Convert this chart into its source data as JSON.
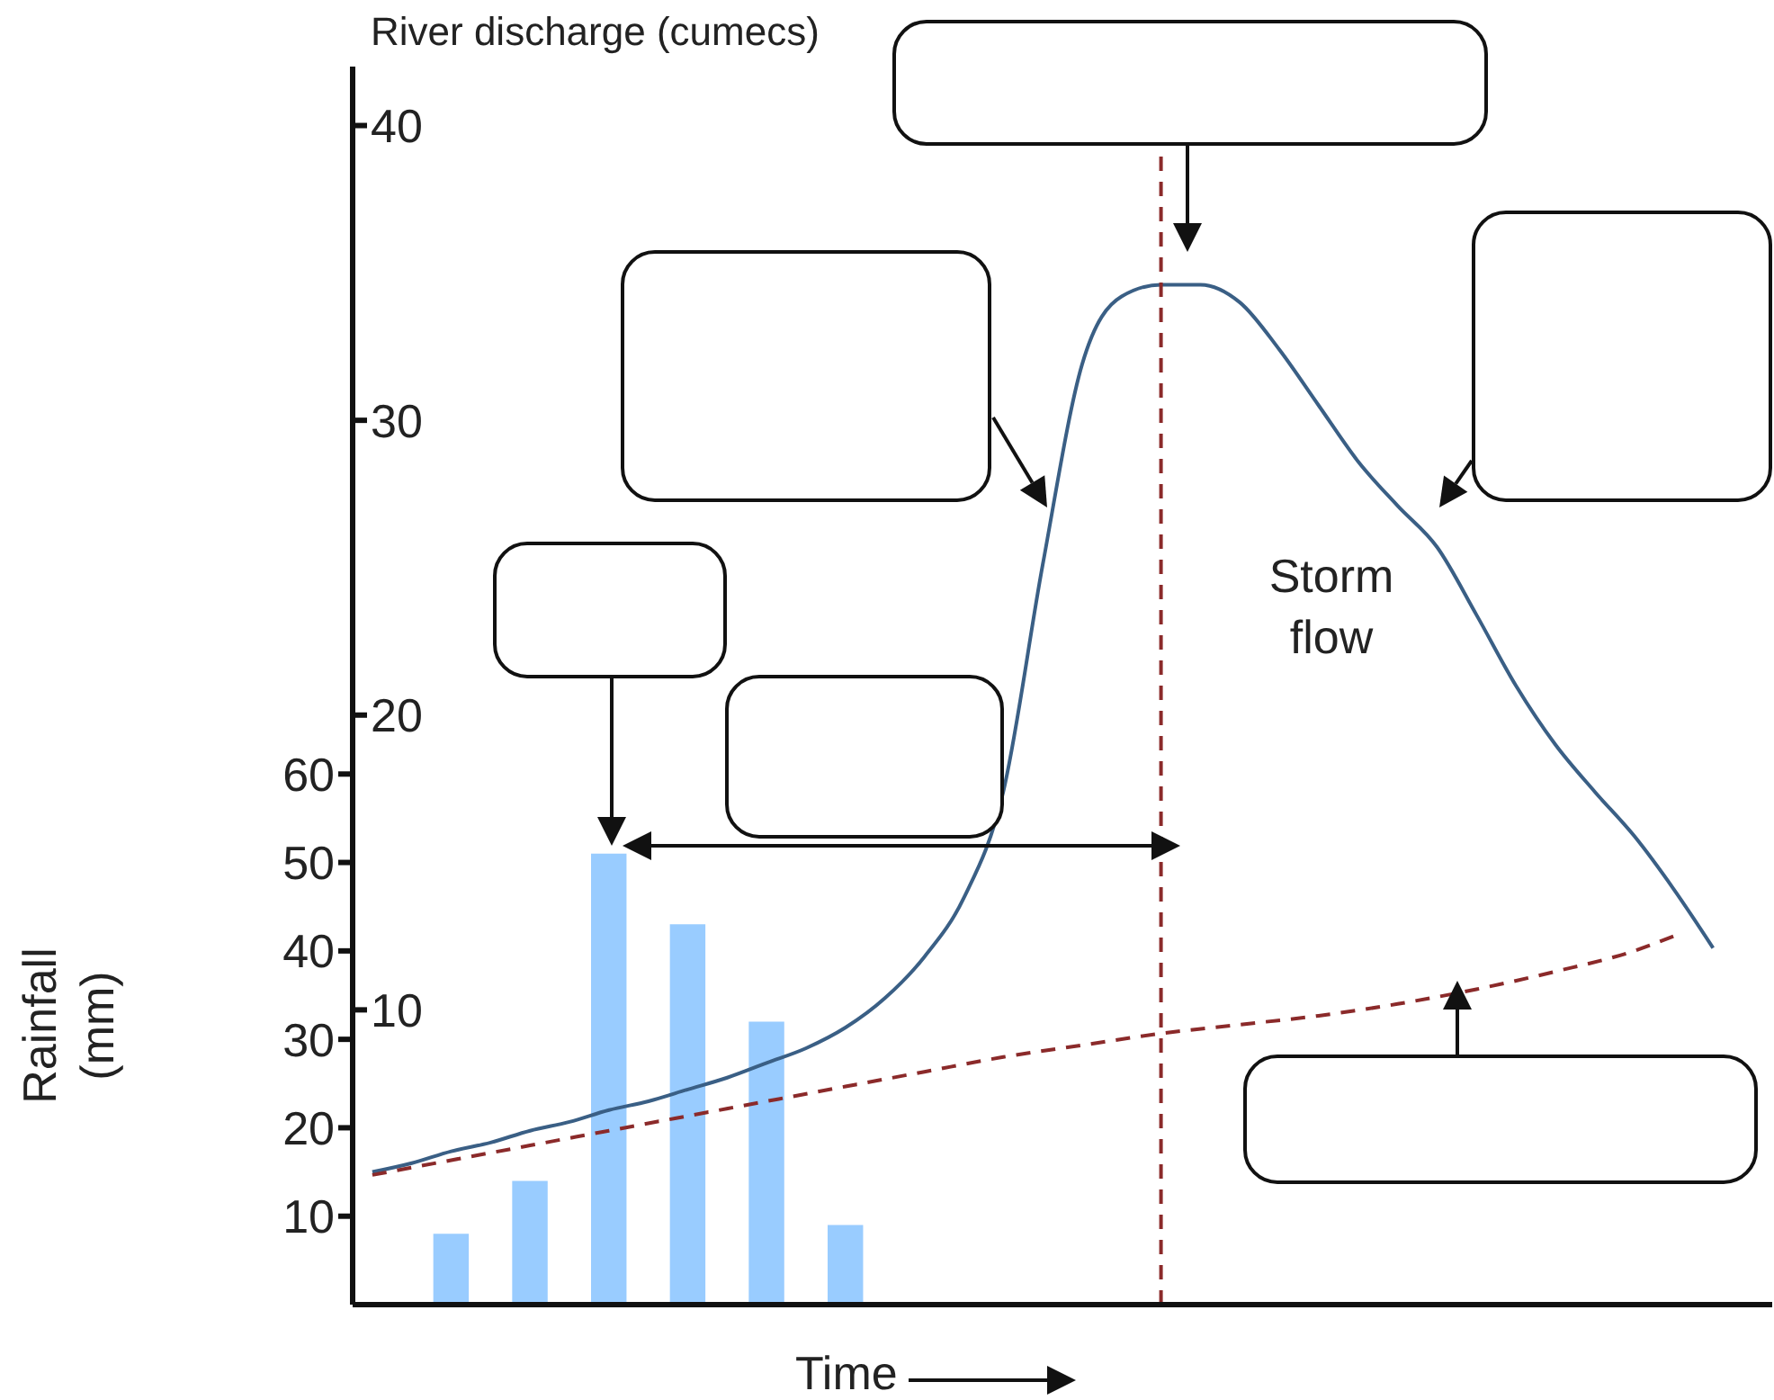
{
  "chart_data": {
    "type": "line",
    "xlabel": "Time",
    "ylabel": "Rainfall (mm)",
    "y2label": "River discharge (cumecs)",
    "categories": [
      null,
      null,
      null,
      null,
      null,
      null,
      null,
      null,
      null,
      null,
      null,
      null,
      null,
      null,
      null,
      null,
      null,
      null,
      null,
      null,
      null,
      null,
      null,
      null,
      null,
      null,
      null,
      null,
      null,
      null,
      null,
      null,
      null,
      null,
      null,
      null
    ],
    "ylim": [
      0,
      140
    ],
    "yticks": [
      10,
      20,
      30,
      40,
      50,
      60
    ],
    "y2lim": [
      0,
      42
    ],
    "y2ticks": [
      10,
      20,
      30,
      40
    ],
    "tick_labels": "y",
    "marker": "none",
    "series": [
      {
        "type": "bar",
        "color": "#99ccff",
        "values": [
          null,
          null,
          8,
          null,
          14,
          null,
          51,
          null,
          43,
          null,
          32,
          null,
          9,
          null,
          null,
          null,
          null,
          null,
          null,
          null,
          null,
          null,
          null,
          null,
          null,
          null,
          null,
          null,
          null,
          null,
          null,
          null,
          null,
          null,
          null,
          null
        ]
      },
      {
        "color": "#3a5f85",
        "axis": "y2",
        "line_style": "solid",
        "values": [
          4.5,
          4.8,
          5.2,
          5.5,
          5.9,
          6.2,
          6.6,
          6.9,
          7.3,
          7.7,
          8.2,
          8.7,
          9.4,
          10.4,
          11.8,
          13.8,
          17.4,
          25.1,
          31.9,
          34.2,
          34.6,
          34.6,
          34.0,
          32.4,
          30.5,
          28.6,
          27.1,
          25.7,
          23.4,
          21.0,
          19.0,
          17.4,
          15.9,
          14.1,
          12.1,
          null
        ]
      },
      {
        "color": "#8b2a2a",
        "axis": "y2",
        "line_style": "dashed",
        "values": [
          4.4,
          null,
          4.9,
          null,
          5.4,
          null,
          5.9,
          null,
          6.4,
          null,
          6.9,
          null,
          7.4,
          null,
          7.9,
          null,
          8.4,
          null,
          8.8,
          null,
          9.2,
          null,
          9.5,
          null,
          9.8,
          null,
          10.2,
          null,
          10.7,
          null,
          11.3,
          null,
          12.0,
          12.5,
          null,
          null
        ]
      }
    ],
    "ref_lines": [
      {
        "axis": "x",
        "color": "#8b2a2a",
        "line_style": "dashed"
      }
    ],
    "annotations": [
      "Storm flow"
    ]
  }
}
